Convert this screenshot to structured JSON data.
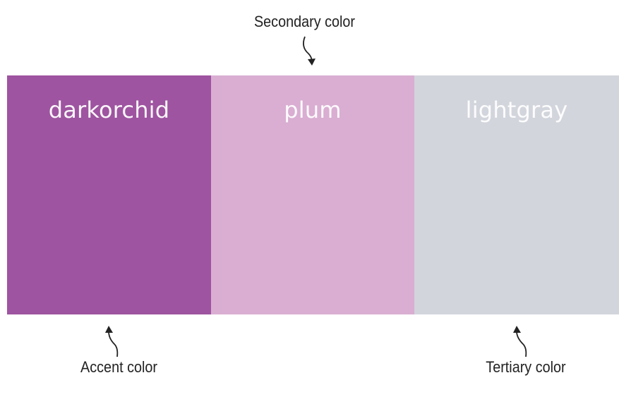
{
  "colors": {
    "accent": "#9e54a0",
    "secondary": "#d9aed2",
    "tertiary": "#d2d5dc"
  },
  "swatches": [
    {
      "label": "darkorchid",
      "color": "#9e54a0"
    },
    {
      "label": "plum",
      "color": "#d9aed2"
    },
    {
      "label": "lightgray",
      "color": "#d2d5dc"
    }
  ],
  "annotations": {
    "secondary": "Secondary color",
    "accent": "Accent color",
    "tertiary": "Tertiary color"
  }
}
